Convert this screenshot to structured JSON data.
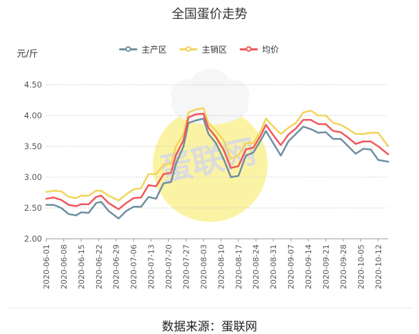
{
  "chart_data": {
    "type": "line",
    "title": "全国蛋价走势",
    "ylabel": "元/斤",
    "xlabel": "",
    "source": "数据来源：蛋联网",
    "ylim": [
      2.0,
      4.5
    ],
    "yticks": [
      "4.50",
      "4.00",
      "3.50",
      "3.00",
      "2.50",
      "2.00"
    ],
    "grid": "y-dotted",
    "legend_position": "top-center",
    "x_tick_labels": [
      "2020-06-01",
      "2020-06-08",
      "2020-06-15",
      "2020-06-22",
      "2020-06-29",
      "2020-07-06",
      "2020-07-13",
      "2020-07-20",
      "2020-07-27",
      "2020-08-03",
      "2020-08-10",
      "2020-08-17",
      "2020-08-24",
      "2020-08-31",
      "2020-09-07",
      "2020-09-14",
      "2020-09-21",
      "2020-09-28",
      "2020-10-05",
      "2020-10-12"
    ],
    "x_start": "2020-06-01",
    "x_end": "2020-10-16",
    "series": [
      {
        "name": "主产区",
        "color": "#6f8fa0",
        "points": [
          [
            "2020-06-01",
            2.55
          ],
          [
            "2020-06-04",
            2.55
          ],
          [
            "2020-06-07",
            2.5
          ],
          [
            "2020-06-10",
            2.4
          ],
          [
            "2020-06-13",
            2.38
          ],
          [
            "2020-06-15",
            2.43
          ],
          [
            "2020-06-18",
            2.42
          ],
          [
            "2020-06-21",
            2.58
          ],
          [
            "2020-06-23",
            2.6
          ],
          [
            "2020-06-26",
            2.45
          ],
          [
            "2020-06-30",
            2.33
          ],
          [
            "2020-07-03",
            2.45
          ],
          [
            "2020-07-06",
            2.52
          ],
          [
            "2020-07-09",
            2.52
          ],
          [
            "2020-07-12",
            2.68
          ],
          [
            "2020-07-15",
            2.65
          ],
          [
            "2020-07-18",
            2.9
          ],
          [
            "2020-07-21",
            2.92
          ],
          [
            "2020-07-23",
            3.22
          ],
          [
            "2020-07-26",
            3.5
          ],
          [
            "2020-07-28",
            3.88
          ],
          [
            "2020-07-31",
            3.92
          ],
          [
            "2020-08-03",
            3.95
          ],
          [
            "2020-08-05",
            3.7
          ],
          [
            "2020-08-08",
            3.55
          ],
          [
            "2020-08-11",
            3.3
          ],
          [
            "2020-08-14",
            3.0
          ],
          [
            "2020-08-17",
            3.02
          ],
          [
            "2020-08-20",
            3.35
          ],
          [
            "2020-08-23",
            3.4
          ],
          [
            "2020-08-26",
            3.6
          ],
          [
            "2020-08-28",
            3.75
          ],
          [
            "2020-08-31",
            3.55
          ],
          [
            "2020-09-03",
            3.35
          ],
          [
            "2020-09-06",
            3.58
          ],
          [
            "2020-09-09",
            3.7
          ],
          [
            "2020-09-12",
            3.82
          ],
          [
            "2020-09-15",
            3.78
          ],
          [
            "2020-09-18",
            3.72
          ],
          [
            "2020-09-21",
            3.73
          ],
          [
            "2020-09-24",
            3.62
          ],
          [
            "2020-09-27",
            3.62
          ],
          [
            "2020-09-30",
            3.5
          ],
          [
            "2020-10-03",
            3.38
          ],
          [
            "2020-10-06",
            3.46
          ],
          [
            "2020-10-09",
            3.45
          ],
          [
            "2020-10-12",
            3.28
          ],
          [
            "2020-10-16",
            3.25
          ]
        ]
      },
      {
        "name": "主销区",
        "color": "#f2d45c",
        "points": [
          [
            "2020-06-01",
            2.76
          ],
          [
            "2020-06-04",
            2.78
          ],
          [
            "2020-06-07",
            2.77
          ],
          [
            "2020-06-10",
            2.68
          ],
          [
            "2020-06-13",
            2.66
          ],
          [
            "2020-06-15",
            2.7
          ],
          [
            "2020-06-18",
            2.7
          ],
          [
            "2020-06-21",
            2.78
          ],
          [
            "2020-06-23",
            2.78
          ],
          [
            "2020-06-26",
            2.7
          ],
          [
            "2020-06-30",
            2.62
          ],
          [
            "2020-07-03",
            2.72
          ],
          [
            "2020-07-06",
            2.8
          ],
          [
            "2020-07-09",
            2.82
          ],
          [
            "2020-07-12",
            3.05
          ],
          [
            "2020-07-15",
            3.05
          ],
          [
            "2020-07-18",
            3.2
          ],
          [
            "2020-07-21",
            3.22
          ],
          [
            "2020-07-23",
            3.5
          ],
          [
            "2020-07-26",
            3.7
          ],
          [
            "2020-07-28",
            4.05
          ],
          [
            "2020-07-31",
            4.1
          ],
          [
            "2020-08-03",
            4.12
          ],
          [
            "2020-08-05",
            3.88
          ],
          [
            "2020-08-08",
            3.75
          ],
          [
            "2020-08-11",
            3.6
          ],
          [
            "2020-08-14",
            3.3
          ],
          [
            "2020-08-17",
            3.35
          ],
          [
            "2020-08-20",
            3.55
          ],
          [
            "2020-08-23",
            3.55
          ],
          [
            "2020-08-26",
            3.75
          ],
          [
            "2020-08-28",
            3.95
          ],
          [
            "2020-08-31",
            3.82
          ],
          [
            "2020-09-03",
            3.7
          ],
          [
            "2020-09-06",
            3.8
          ],
          [
            "2020-09-09",
            3.88
          ],
          [
            "2020-09-12",
            4.05
          ],
          [
            "2020-09-15",
            4.08
          ],
          [
            "2020-09-18",
            4.0
          ],
          [
            "2020-09-21",
            4.0
          ],
          [
            "2020-09-24",
            3.88
          ],
          [
            "2020-09-27",
            3.85
          ],
          [
            "2020-09-30",
            3.78
          ],
          [
            "2020-10-03",
            3.7
          ],
          [
            "2020-10-06",
            3.7
          ],
          [
            "2020-10-09",
            3.72
          ],
          [
            "2020-10-12",
            3.72
          ],
          [
            "2020-10-16",
            3.5
          ]
        ]
      },
      {
        "name": "均价",
        "color": "#f0575a",
        "points": [
          [
            "2020-06-01",
            2.65
          ],
          [
            "2020-06-04",
            2.67
          ],
          [
            "2020-06-07",
            2.63
          ],
          [
            "2020-06-10",
            2.55
          ],
          [
            "2020-06-13",
            2.53
          ],
          [
            "2020-06-15",
            2.56
          ],
          [
            "2020-06-18",
            2.56
          ],
          [
            "2020-06-21",
            2.68
          ],
          [
            "2020-06-23",
            2.7
          ],
          [
            "2020-06-26",
            2.58
          ],
          [
            "2020-06-30",
            2.48
          ],
          [
            "2020-07-03",
            2.58
          ],
          [
            "2020-07-06",
            2.66
          ],
          [
            "2020-07-09",
            2.67
          ],
          [
            "2020-07-12",
            2.87
          ],
          [
            "2020-07-15",
            2.85
          ],
          [
            "2020-07-18",
            3.05
          ],
          [
            "2020-07-21",
            3.07
          ],
          [
            "2020-07-23",
            3.36
          ],
          [
            "2020-07-26",
            3.6
          ],
          [
            "2020-07-28",
            3.97
          ],
          [
            "2020-07-31",
            4.02
          ],
          [
            "2020-08-03",
            4.03
          ],
          [
            "2020-08-05",
            3.8
          ],
          [
            "2020-08-08",
            3.65
          ],
          [
            "2020-08-11",
            3.45
          ],
          [
            "2020-08-14",
            3.15
          ],
          [
            "2020-08-17",
            3.18
          ],
          [
            "2020-08-20",
            3.45
          ],
          [
            "2020-08-23",
            3.48
          ],
          [
            "2020-08-26",
            3.68
          ],
          [
            "2020-08-28",
            3.85
          ],
          [
            "2020-08-31",
            3.68
          ],
          [
            "2020-09-03",
            3.52
          ],
          [
            "2020-09-06",
            3.69
          ],
          [
            "2020-09-09",
            3.79
          ],
          [
            "2020-09-12",
            3.93
          ],
          [
            "2020-09-15",
            3.93
          ],
          [
            "2020-09-18",
            3.86
          ],
          [
            "2020-09-21",
            3.86
          ],
          [
            "2020-09-24",
            3.75
          ],
          [
            "2020-09-27",
            3.73
          ],
          [
            "2020-09-30",
            3.64
          ],
          [
            "2020-10-03",
            3.54
          ],
          [
            "2020-10-06",
            3.58
          ],
          [
            "2020-10-09",
            3.58
          ],
          [
            "2020-10-12",
            3.5
          ],
          [
            "2020-10-16",
            3.37
          ]
        ]
      }
    ]
  },
  "watermark": {
    "text": "蛋联网",
    "circle_color": "#fbf3a4",
    "hat_color": "#f6f6f6",
    "text_color": "#dcdcdc"
  }
}
